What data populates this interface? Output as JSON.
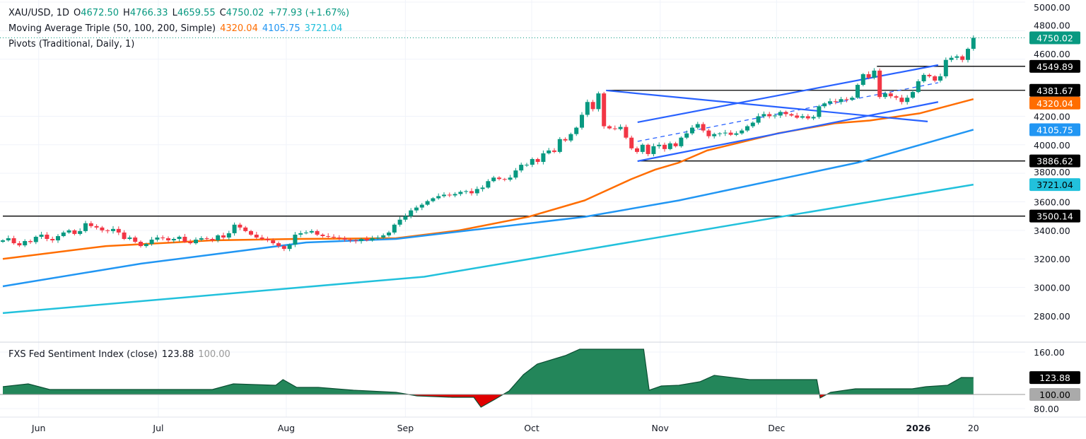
{
  "legend": {
    "symbol": "XAU/USD, 1D",
    "open_label": "O",
    "open": "4672.50",
    "high_label": "H",
    "high": "4766.33",
    "low_label": "L",
    "low": "4659.55",
    "close_label": "C",
    "close": "4750.02",
    "change": "+77.93 (+1.67%)",
    "ma_title": "Moving Average Triple (50, 100, 200, Simple)",
    "ma50": "4320.04",
    "ma100": "4105.75",
    "ma200": "3721.04",
    "pivots_title": "Pivots (Traditional, Daily, 1)",
    "sentiment_title": "FXS Fed Sentiment Index (close)",
    "sentiment_value": "123.88",
    "sentiment_base": "100.00"
  },
  "colors": {
    "up": "#089981",
    "down": "#f23645",
    "ma50": "#ff6d00",
    "ma100": "#2196f3",
    "ma200": "#22c1dc",
    "trendline": "#2962ff",
    "pivot": "#000000",
    "sentiment_up": "#23865a",
    "sentiment_down": "#e00000"
  },
  "chart_data": [
    {
      "type": "candlestick",
      "title": "XAU/USD, 1D",
      "ylim": [
        2700,
        5000
      ],
      "y_ticks": [
        "5000.00",
        "4800.00",
        "4600.00",
        "4200.00",
        "4000.00",
        "3800.00",
        "3600.00",
        "3400.00",
        "3200.00",
        "3000.00",
        "2800.00"
      ],
      "x_labels": [
        {
          "bar": 6.5,
          "label": "Jun"
        },
        {
          "bar": 28.2,
          "label": "Jul"
        },
        {
          "bar": 51.4,
          "label": "Aug"
        },
        {
          "bar": 73,
          "label": "Sep"
        },
        {
          "bar": 95.9,
          "label": "Oct"
        },
        {
          "bar": 119.2,
          "label": "Nov"
        },
        {
          "bar": 140.3,
          "label": "Dec"
        },
        {
          "bar": 166,
          "label": "2026"
        },
        {
          "bar": 176,
          "label": "20"
        }
      ],
      "closes": [
        3330,
        3345,
        3310,
        3295,
        3325,
        3318,
        3355,
        3370,
        3340,
        3330,
        3360,
        3385,
        3400,
        3375,
        3395,
        3450,
        3430,
        3420,
        3400,
        3395,
        3410,
        3385,
        3340,
        3350,
        3320,
        3290,
        3305,
        3335,
        3350,
        3345,
        3330,
        3340,
        3355,
        3320,
        3310,
        3335,
        3345,
        3340,
        3330,
        3365,
        3350,
        3380,
        3440,
        3420,
        3395,
        3370,
        3350,
        3340,
        3330,
        3310,
        3290,
        3270,
        3300,
        3370,
        3380,
        3385,
        3395,
        3370,
        3360,
        3355,
        3350,
        3345,
        3335,
        3330,
        3325,
        3340,
        3330,
        3345,
        3350,
        3365,
        3385,
        3440,
        3475,
        3500,
        3540,
        3560,
        3580,
        3605,
        3625,
        3640,
        3650,
        3645,
        3655,
        3670,
        3675,
        3660,
        3690,
        3700,
        3745,
        3770,
        3760,
        3755,
        3770,
        3820,
        3860,
        3860,
        3900,
        3880,
        3940,
        3960,
        3950,
        4040,
        4030,
        4075,
        4120,
        4210,
        4300,
        4250,
        4360,
        4130,
        4115,
        4110,
        4125,
        4050,
        3975,
        3950,
        4000,
        3935,
        3990,
        4000,
        3970,
        4010,
        3990,
        4050,
        4080,
        4120,
        4145,
        4100,
        4060,
        4075,
        4080,
        4085,
        4070,
        4080,
        4100,
        4130,
        4155,
        4200,
        4215,
        4200,
        4205,
        4230,
        4215,
        4205,
        4190,
        4200,
        4185,
        4195,
        4270,
        4290,
        4305,
        4300,
        4320,
        4315,
        4330,
        4420,
        4495,
        4470,
        4520,
        4335,
        4360,
        4340,
        4330,
        4300,
        4330,
        4370,
        4445,
        4490,
        4480,
        4450,
        4480,
        4595,
        4610,
        4620,
        4595,
        4672.5,
        4750.02
      ],
      "last_candle": {
        "open": 4672.5,
        "high": 4766.33,
        "low": 4659.55,
        "close": 4750.02
      },
      "moving_averages": [
        {
          "name": "MA 50",
          "value": "4320.04",
          "points": [
            [
              0,
              3200
            ],
            [
              18.7,
              3290
            ],
            [
              38,
              3330
            ],
            [
              53.3,
              3340
            ],
            [
              71.3,
              3345
            ],
            [
              82.8,
              3400
            ],
            [
              95.3,
              3495
            ],
            [
              105.5,
              3610
            ],
            [
              114,
              3760
            ],
            [
              118.3,
              3826
            ],
            [
              122.6,
              3875
            ],
            [
              127.7,
              3960
            ],
            [
              140.5,
              4080
            ],
            [
              150.8,
              4150
            ],
            [
              157.2,
              4170
            ],
            [
              166.2,
              4220
            ],
            [
              176,
              4320.04
            ]
          ]
        },
        {
          "name": "MA 100",
          "value": "4105.75",
          "points": [
            [
              0,
              3008
            ],
            [
              25.1,
              3167
            ],
            [
              55,
              3315
            ],
            [
              71.3,
              3340
            ],
            [
              105.5,
              3495
            ],
            [
              122.6,
              3610
            ],
            [
              155,
              3875
            ],
            [
              176,
              4105.75
            ]
          ]
        },
        {
          "name": "MA 200",
          "value": "3721.04",
          "points": [
            [
              0,
              2820
            ],
            [
              76.4,
              3075
            ],
            [
              141.8,
              3500
            ],
            [
              176,
              3721.04
            ]
          ]
        }
      ],
      "pivots": [
        {
          "value": 4549.89,
          "label": "4549.89",
          "from_bar": 158.5
        },
        {
          "value": 4381.67,
          "label": "4381.67",
          "from_bar": 109.4
        },
        {
          "value": 3886.62,
          "label": "3886.62",
          "from_bar": 115.1
        },
        {
          "value": 3500.14,
          "label": "3500.14",
          "from_bar": 0
        }
      ],
      "trendlines": [
        {
          "from": [
            115.1,
            4158
          ],
          "to": [
            169.6,
            4559
          ],
          "dashed": false
        },
        {
          "from": [
            115.1,
            3885
          ],
          "to": [
            169.6,
            4300
          ],
          "dashed": false
        },
        {
          "from": [
            115.1,
            4024
          ],
          "to": [
            169.6,
            4435
          ],
          "dashed": true
        },
        {
          "from": [
            109.4,
            4381
          ],
          "to": [
            167.7,
            4163
          ],
          "dashed": false
        }
      ],
      "last_price_label": "4750.02"
    },
    {
      "type": "area",
      "title": "FXS Fed Sentiment Index (close)",
      "ylim": [
        70,
        170
      ],
      "baseline": 100,
      "y_ticks": [
        "160.00",
        "80.00"
      ],
      "points": [
        [
          0,
          111
        ],
        [
          4.6,
          115
        ],
        [
          8.5,
          107
        ],
        [
          18.7,
          107
        ],
        [
          38,
          107
        ],
        [
          41.8,
          115
        ],
        [
          49.5,
          113
        ],
        [
          50.8,
          121
        ],
        [
          53.3,
          110
        ],
        [
          57.2,
          110
        ],
        [
          63.6,
          106
        ],
        [
          71.3,
          103
        ],
        [
          75.1,
          98
        ],
        [
          81.5,
          96
        ],
        [
          85.4,
          96
        ],
        [
          86.7,
          82
        ],
        [
          89.2,
          93
        ],
        [
          91.8,
          105
        ],
        [
          94.4,
          128
        ],
        [
          96.9,
          143
        ],
        [
          102,
          155
        ],
        [
          104.6,
          164
        ],
        [
          116.2,
          164
        ],
        [
          117.2,
          106
        ],
        [
          119.4,
          112
        ],
        [
          122.6,
          113
        ],
        [
          126.4,
          118
        ],
        [
          129,
          127
        ],
        [
          135.4,
          121
        ],
        [
          147.6,
          121
        ],
        [
          148.2,
          95
        ],
        [
          150.1,
          103
        ],
        [
          154.6,
          108
        ],
        [
          164.9,
          108
        ],
        [
          167.4,
          111
        ],
        [
          171.3,
          113
        ],
        [
          173.8,
          124
        ],
        [
          176,
          123.88
        ]
      ],
      "last_value_label": "123.88",
      "baseline_label": "100.00"
    }
  ]
}
